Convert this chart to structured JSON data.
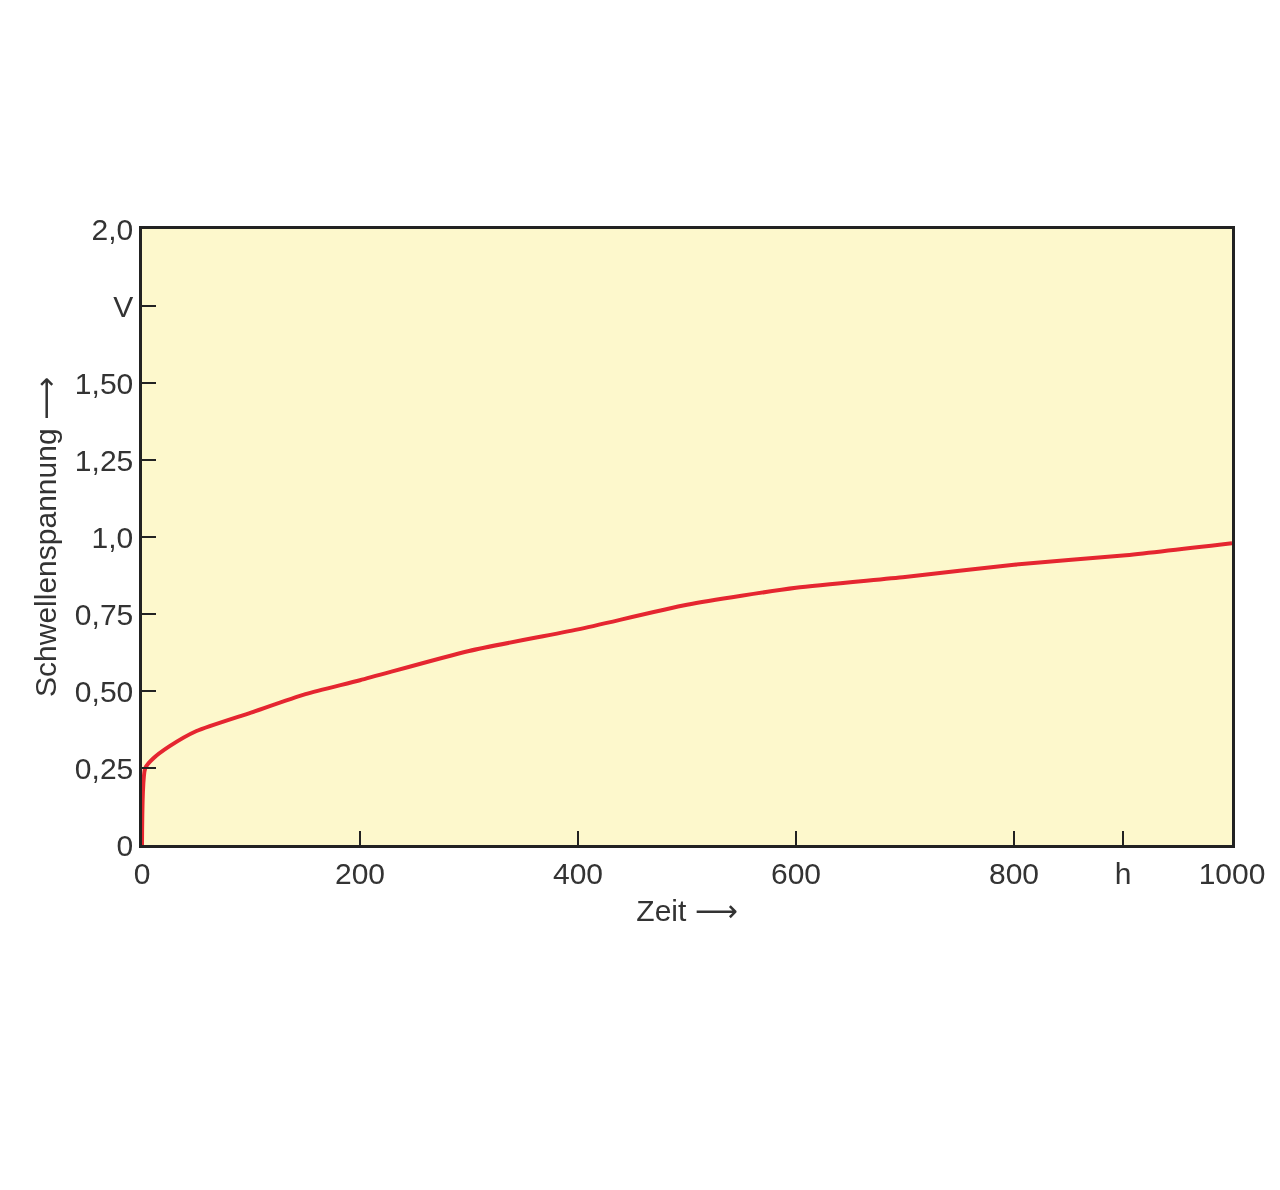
{
  "chart_data": {
    "type": "line",
    "xlabel": "Zeit ⟶",
    "ylabel": "Schwellenspannung ⟶",
    "series": [
      {
        "color": "#e52630",
        "x": [
          0,
          3,
          10,
          25,
          50,
          100,
          150,
          200,
          300,
          400,
          500,
          600,
          700,
          800,
          900,
          1000
        ],
        "values": [
          0,
          0.25,
          0.28,
          0.32,
          0.37,
          0.43,
          0.49,
          0.535,
          0.63,
          0.7,
          0.78,
          0.835,
          0.87,
          0.91,
          0.94,
          0.98
        ]
      }
    ],
    "xlim": [
      0,
      1000
    ],
    "ylim": [
      0,
      2
    ],
    "xticks": [
      0,
      200,
      400,
      600,
      800,
      {
        "value": 900,
        "label": "h"
      },
      1000
    ],
    "yticks": [
      0,
      {
        "value": 0.25,
        "label": "0,25"
      },
      {
        "value": 0.5,
        "label": "0,50"
      },
      {
        "value": 0.75,
        "label": "0,75"
      },
      {
        "value": 1,
        "label": "1,0"
      },
      {
        "value": 1.25,
        "label": "1,25"
      },
      {
        "value": 1.5,
        "label": "1,50"
      },
      {
        "value": 1.75,
        "label": "V"
      },
      {
        "value": 2,
        "label": "2,0"
      }
    ],
    "grid": false,
    "marker": "none",
    "line_style": "solid"
  }
}
